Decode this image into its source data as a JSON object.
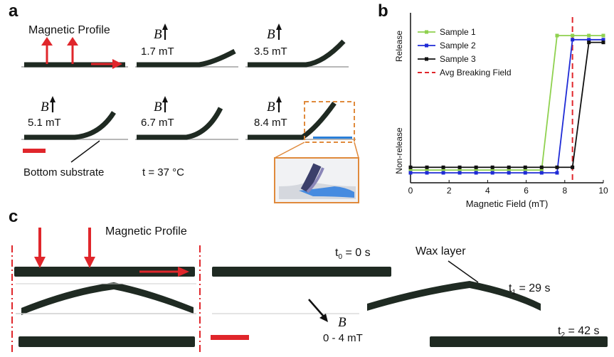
{
  "panel_a": {
    "letter": "a",
    "magnetic_profile": "Magnetic Profile",
    "b_symbol": "B",
    "fields": [
      "1.7 mT",
      "3.5 mT",
      "5.1 mT",
      "6.7 mT",
      "8.4 mT"
    ],
    "bottom_substrate": "Bottom substrate",
    "temperature": "t = 37 °C"
  },
  "panel_b": {
    "letter": "b",
    "chart_data": {
      "type": "line",
      "xlabel": "Magnetic Field (mT)",
      "ylabel_top": "Release",
      "ylabel_bottom": "Non-release",
      "xlim": [
        0,
        10
      ],
      "xticks": [
        "0",
        "2",
        "4",
        "6",
        "8",
        "10"
      ],
      "legend_position": "top-left",
      "x": [
        0,
        0.85,
        1.7,
        2.55,
        3.4,
        4.25,
        5.1,
        5.95,
        6.8,
        7.6,
        8.4,
        9.25,
        10
      ],
      "series": [
        {
          "name": "Sample 1",
          "color": "#8fd14f",
          "values": [
            0.02,
            0.02,
            0.02,
            0.02,
            0.02,
            0.02,
            0.02,
            0.02,
            0.02,
            1.0,
            1.0,
            1.0,
            1.0
          ]
        },
        {
          "name": "Sample 2",
          "color": "#1f2bd6",
          "values": [
            0.0,
            0.0,
            0.0,
            0.0,
            0.0,
            0.0,
            0.0,
            0.0,
            0.0,
            0.0,
            0.97,
            0.97,
            0.97
          ]
        },
        {
          "name": "Sample 3",
          "color": "#111111",
          "values": [
            0.04,
            0.04,
            0.04,
            0.04,
            0.04,
            0.04,
            0.04,
            0.04,
            0.04,
            0.04,
            0.04,
            0.95,
            0.95
          ]
        }
      ],
      "reference_line": {
        "name": "Avg Breaking Field",
        "x": 8.4,
        "color": "#e0262b"
      }
    }
  },
  "panel_c": {
    "letter": "c",
    "magnetic_profile": "Magnetic Profile",
    "b_symbol": "B",
    "field_range": "0 - 4 mT",
    "wax_layer": "Wax layer",
    "times": [
      {
        "sym": "t",
        "sub": "0",
        "val": " = 0 s"
      },
      {
        "sym": "t",
        "sub": "1",
        "val": " = 29 s"
      },
      {
        "sym": "t",
        "sub": "2",
        "val": " = 42 s"
      }
    ]
  },
  "colors": {
    "arrow_red": "#e0262b",
    "film": "#1f2a22",
    "orange_box": "#e08a3c",
    "substrate": "#b8b8b8"
  }
}
